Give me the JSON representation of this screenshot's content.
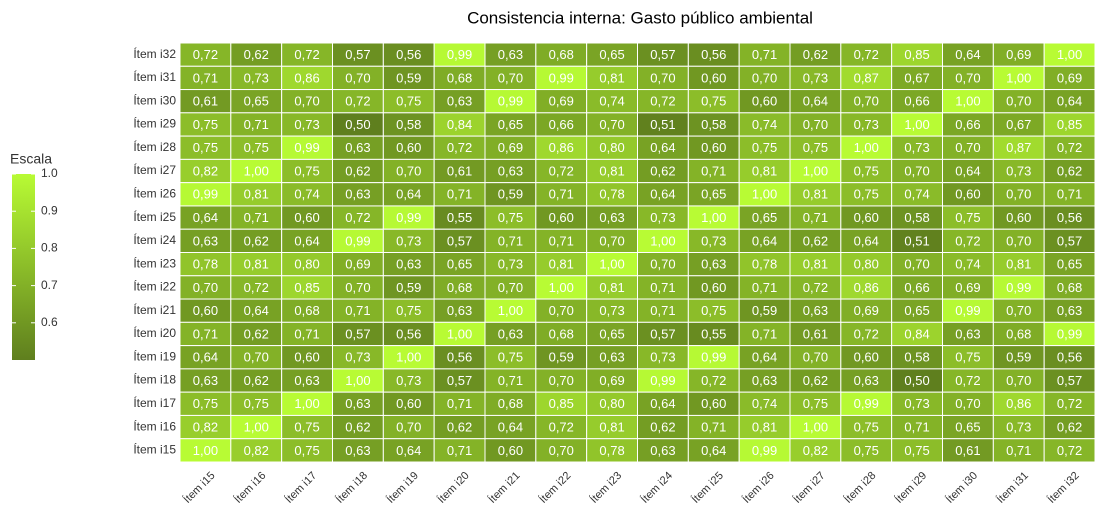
{
  "chart_data": {
    "type": "heatmap",
    "title": "Consistencia interna: Gasto público ambiental",
    "x_categories": [
      "Ítem i15",
      "Ítem i16",
      "Ítem i17",
      "Ítem i18",
      "Ítem i19",
      "Ítem i20",
      "Ítem i21",
      "Ítem i22",
      "Ítem i23",
      "Ítem i24",
      "Ítem i25",
      "Ítem i26",
      "Ítem i27",
      "Ítem i28",
      "Ítem i29",
      "Ítem i30",
      "Ítem i31",
      "Ítem i32"
    ],
    "y_categories": [
      "Ítem i32",
      "Ítem i31",
      "Ítem i30",
      "Ítem i29",
      "Ítem i28",
      "Ítem i27",
      "Ítem i26",
      "Ítem i25",
      "Ítem i24",
      "Ítem i23",
      "Ítem i22",
      "Ítem i21",
      "Ítem i20",
      "Ítem i19",
      "Ítem i18",
      "Ítem i17",
      "Ítem i16",
      "Ítem i15"
    ],
    "values": [
      [
        0.72,
        0.62,
        0.72,
        0.57,
        0.56,
        0.99,
        0.63,
        0.68,
        0.65,
        0.57,
        0.56,
        0.71,
        0.62,
        0.72,
        0.85,
        0.64,
        0.69,
        1.0
      ],
      [
        0.71,
        0.73,
        0.86,
        0.7,
        0.59,
        0.68,
        0.7,
        0.99,
        0.81,
        0.7,
        0.6,
        0.7,
        0.73,
        0.87,
        0.67,
        0.7,
        1.0,
        0.69
      ],
      [
        0.61,
        0.65,
        0.7,
        0.72,
        0.75,
        0.63,
        0.99,
        0.69,
        0.74,
        0.72,
        0.75,
        0.6,
        0.64,
        0.7,
        0.66,
        1.0,
        0.7,
        0.64
      ],
      [
        0.75,
        0.71,
        0.73,
        0.5,
        0.58,
        0.84,
        0.65,
        0.66,
        0.7,
        0.51,
        0.58,
        0.74,
        0.7,
        0.73,
        1.0,
        0.66,
        0.67,
        0.85
      ],
      [
        0.75,
        0.75,
        0.99,
        0.63,
        0.6,
        0.72,
        0.69,
        0.86,
        0.8,
        0.64,
        0.6,
        0.75,
        0.75,
        1.0,
        0.73,
        0.7,
        0.87,
        0.72
      ],
      [
        0.82,
        1.0,
        0.75,
        0.62,
        0.7,
        0.61,
        0.63,
        0.72,
        0.81,
        0.62,
        0.71,
        0.81,
        1.0,
        0.75,
        0.7,
        0.64,
        0.73,
        0.62
      ],
      [
        0.99,
        0.81,
        0.74,
        0.63,
        0.64,
        0.71,
        0.59,
        0.71,
        0.78,
        0.64,
        0.65,
        1.0,
        0.81,
        0.75,
        0.74,
        0.6,
        0.7,
        0.71
      ],
      [
        0.64,
        0.71,
        0.6,
        0.72,
        0.99,
        0.55,
        0.75,
        0.6,
        0.63,
        0.73,
        1.0,
        0.65,
        0.71,
        0.6,
        0.58,
        0.75,
        0.6,
        0.56
      ],
      [
        0.63,
        0.62,
        0.64,
        0.99,
        0.73,
        0.57,
        0.71,
        0.71,
        0.7,
        1.0,
        0.73,
        0.64,
        0.62,
        0.64,
        0.51,
        0.72,
        0.7,
        0.57
      ],
      [
        0.78,
        0.81,
        0.8,
        0.69,
        0.63,
        0.65,
        0.73,
        0.81,
        1.0,
        0.7,
        0.63,
        0.78,
        0.81,
        0.8,
        0.7,
        0.74,
        0.81,
        0.65
      ],
      [
        0.7,
        0.72,
        0.85,
        0.7,
        0.59,
        0.68,
        0.7,
        1.0,
        0.81,
        0.71,
        0.6,
        0.71,
        0.72,
        0.86,
        0.66,
        0.69,
        0.99,
        0.68
      ],
      [
        0.6,
        0.64,
        0.68,
        0.71,
        0.75,
        0.63,
        1.0,
        0.7,
        0.73,
        0.71,
        0.75,
        0.59,
        0.63,
        0.69,
        0.65,
        0.99,
        0.7,
        0.63
      ],
      [
        0.71,
        0.62,
        0.71,
        0.57,
        0.56,
        1.0,
        0.63,
        0.68,
        0.65,
        0.57,
        0.55,
        0.71,
        0.61,
        0.72,
        0.84,
        0.63,
        0.68,
        0.99
      ],
      [
        0.64,
        0.7,
        0.6,
        0.73,
        1.0,
        0.56,
        0.75,
        0.59,
        0.63,
        0.73,
        0.99,
        0.64,
        0.7,
        0.6,
        0.58,
        0.75,
        0.59,
        0.56
      ],
      [
        0.63,
        0.62,
        0.63,
        1.0,
        0.73,
        0.57,
        0.71,
        0.7,
        0.69,
        0.99,
        0.72,
        0.63,
        0.62,
        0.63,
        0.5,
        0.72,
        0.7,
        0.57
      ],
      [
        0.75,
        0.75,
        1.0,
        0.63,
        0.6,
        0.71,
        0.68,
        0.85,
        0.8,
        0.64,
        0.6,
        0.74,
        0.75,
        0.99,
        0.73,
        0.7,
        0.86,
        0.72
      ],
      [
        0.82,
        1.0,
        0.75,
        0.62,
        0.7,
        0.62,
        0.64,
        0.72,
        0.81,
        0.62,
        0.71,
        0.81,
        1.0,
        0.75,
        0.71,
        0.65,
        0.73,
        0.62
      ],
      [
        1.0,
        0.82,
        0.75,
        0.63,
        0.64,
        0.71,
        0.6,
        0.7,
        0.78,
        0.63,
        0.64,
        0.99,
        0.82,
        0.75,
        0.75,
        0.61,
        0.71,
        0.72
      ]
    ],
    "value_labels": [
      [
        "0,72",
        "0,62",
        "0,72",
        "0,57",
        "0,56",
        "0,99",
        "0,63",
        "0,68",
        "0,65",
        "0,57",
        "0,56",
        "0,71",
        "0,62",
        "0,72",
        "0,85",
        "0,64",
        "0,69",
        "1,00"
      ],
      [
        "0,71",
        "0,73",
        "0,86",
        "0,70",
        "0,59",
        "0,68",
        "0,70",
        "0,99",
        "0,81",
        "0,70",
        "0,60",
        "0,70",
        "0,73",
        "0,87",
        "0,67",
        "0,70",
        "1,00",
        "0,69"
      ],
      [
        "0,61",
        "0,65",
        "0,70",
        "0,72",
        "0,75",
        "0,63",
        "0,99",
        "0,69",
        "0,74",
        "0,72",
        "0,75",
        "0,60",
        "0,64",
        "0,70",
        "0,66",
        "1,00",
        "0,70",
        "0,64"
      ],
      [
        "0,75",
        "0,71",
        "0,73",
        "0,50",
        "0,58",
        "0,84",
        "0,65",
        "0,66",
        "0,70",
        "0,51",
        "0,58",
        "0,74",
        "0,70",
        "0,73",
        "1,00",
        "0,66",
        "0,67",
        "0,85"
      ],
      [
        "0,75",
        "0,75",
        "0,99",
        "0,63",
        "0,60",
        "0,72",
        "0,69",
        "0,86",
        "0,80",
        "0,64",
        "0,60",
        "0,75",
        "0,75",
        "1,00",
        "0,73",
        "0,70",
        "0,87",
        "0,72"
      ],
      [
        "0,82",
        "1,00",
        "0,75",
        "0,62",
        "0,70",
        "0,61",
        "0,63",
        "0,72",
        "0,81",
        "0,62",
        "0,71",
        "0,81",
        "1,00",
        "0,75",
        "0,70",
        "0,64",
        "0,73",
        "0,62"
      ],
      [
        "0,99",
        "0,81",
        "0,74",
        "0,63",
        "0,64",
        "0,71",
        "0,59",
        "0,71",
        "0,78",
        "0,64",
        "0,65",
        "1,00",
        "0,81",
        "0,75",
        "0,74",
        "0,60",
        "0,70",
        "0,71"
      ],
      [
        "0,64",
        "0,71",
        "0,60",
        "0,72",
        "0,99",
        "0,55",
        "0,75",
        "0,60",
        "0,63",
        "0,73",
        "1,00",
        "0,65",
        "0,71",
        "0,60",
        "0,58",
        "0,75",
        "0,60",
        "0,56"
      ],
      [
        "0,63",
        "0,62",
        "0,64",
        "0,99",
        "0,73",
        "0,57",
        "0,71",
        "0,71",
        "0,70",
        "1,00",
        "0,73",
        "0,64",
        "0,62",
        "0,64",
        "0,51",
        "0,72",
        "0,70",
        "0,57"
      ],
      [
        "0,78",
        "0,81",
        "0,80",
        "0,69",
        "0,63",
        "0,65",
        "0,73",
        "0,81",
        "1,00",
        "0,70",
        "0,63",
        "0,78",
        "0,81",
        "0,80",
        "0,70",
        "0,74",
        "0,81",
        "0,65"
      ],
      [
        "0,70",
        "0,72",
        "0,85",
        "0,70",
        "0,59",
        "0,68",
        "0,70",
        "1,00",
        "0,81",
        "0,71",
        "0,60",
        "0,71",
        "0,72",
        "0,86",
        "0,66",
        "0,69",
        "0,99",
        "0,68"
      ],
      [
        "0,60",
        "0,64",
        "0,68",
        "0,71",
        "0,75",
        "0,63",
        "1,00",
        "0,70",
        "0,73",
        "0,71",
        "0,75",
        "0,59",
        "0,63",
        "0,69",
        "0,65",
        "0,99",
        "0,70",
        "0,63"
      ],
      [
        "0,71",
        "0,62",
        "0,71",
        "0,57",
        "0,56",
        "1,00",
        "0,63",
        "0,68",
        "0,65",
        "0,57",
        "0,55",
        "0,71",
        "0,61",
        "0,72",
        "0,84",
        "0,63",
        "0,68",
        "0,99"
      ],
      [
        "0,64",
        "0,70",
        "0,60",
        "0,73",
        "1,00",
        "0,56",
        "0,75",
        "0,59",
        "0,63",
        "0,73",
        "0,99",
        "0,64",
        "0,70",
        "0,60",
        "0,58",
        "0,75",
        "0,59",
        "0,56"
      ],
      [
        "0,63",
        "0,62",
        "0,63",
        "1,00",
        "0,73",
        "0,57",
        "0,71",
        "0,70",
        "0,69",
        "0,99",
        "0,72",
        "0,63",
        "0,62",
        "0,63",
        "0,50",
        "0,72",
        "0,70",
        "0,57"
      ],
      [
        "0,75",
        "0,75",
        "1,00",
        "0,63",
        "0,60",
        "0,71",
        "0,68",
        "0,85",
        "0,80",
        "0,64",
        "0,60",
        "0,74",
        "0,75",
        "0,99",
        "0,73",
        "0,70",
        "0,86",
        "0,72"
      ],
      [
        "0,82",
        "1,00",
        "0,75",
        "0,62",
        "0,70",
        "0,62",
        "0,64",
        "0,72",
        "0,81",
        "0,62",
        "0,71",
        "0,81",
        "1,00",
        "0,75",
        "0,71",
        "0,65",
        "0,73",
        "0,62"
      ],
      [
        "1,00",
        "0,82",
        "0,75",
        "0,63",
        "0,64",
        "0,71",
        "0,60",
        "0,70",
        "0,78",
        "0,63",
        "0,64",
        "0,99",
        "0,82",
        "0,75",
        "0,75",
        "0,61",
        "0,71",
        "0,72"
      ]
    ],
    "legend_title": "Escala",
    "color_lim": [
      0.5,
      1.0
    ],
    "color_ticks": [
      0.6,
      0.7,
      0.8,
      0.9,
      {
        "value": 1.0,
        "label": "1.0"
      }
    ],
    "low_color": "#5f7f1e",
    "high_color": "#b8fb34"
  }
}
